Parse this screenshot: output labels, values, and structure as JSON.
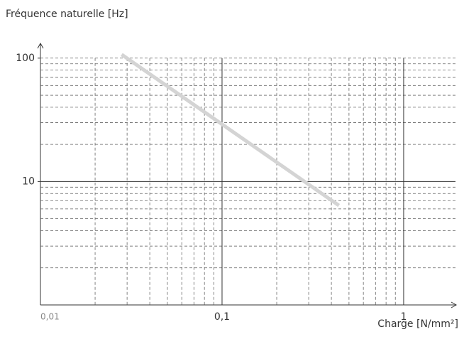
{
  "chart_data": {
    "type": "line",
    "title": "Fréquence naturelle [Hz]",
    "x_label": "Charge [N/mm²]",
    "series": [
      {
        "x": [
          0.028,
          0.44
        ],
        "values": [
          107,
          6.4
        ],
        "color": "#d4d4d4"
      }
    ],
    "xscale": "log",
    "yscale": "log",
    "xlim": [
      0.01,
      2
    ],
    "ylim": [
      1,
      130
    ],
    "xticks": [
      {
        "value": 0.01,
        "label": "0,01"
      },
      {
        "value": 0.1,
        "label": "0,1"
      },
      1
    ],
    "yticks": [
      10,
      100
    ],
    "x_minor_ticks": [
      0.02,
      0.03,
      0.04,
      0.05,
      0.06,
      0.07,
      0.08,
      0.09,
      0.2,
      0.3,
      0.4,
      0.5,
      0.6,
      0.7,
      0.8,
      0.9
    ],
    "y_minor_ticks": [
      2,
      3,
      4,
      5,
      6,
      7,
      8,
      9,
      20,
      30,
      40,
      50,
      60,
      70,
      80,
      90
    ],
    "grid": true
  }
}
